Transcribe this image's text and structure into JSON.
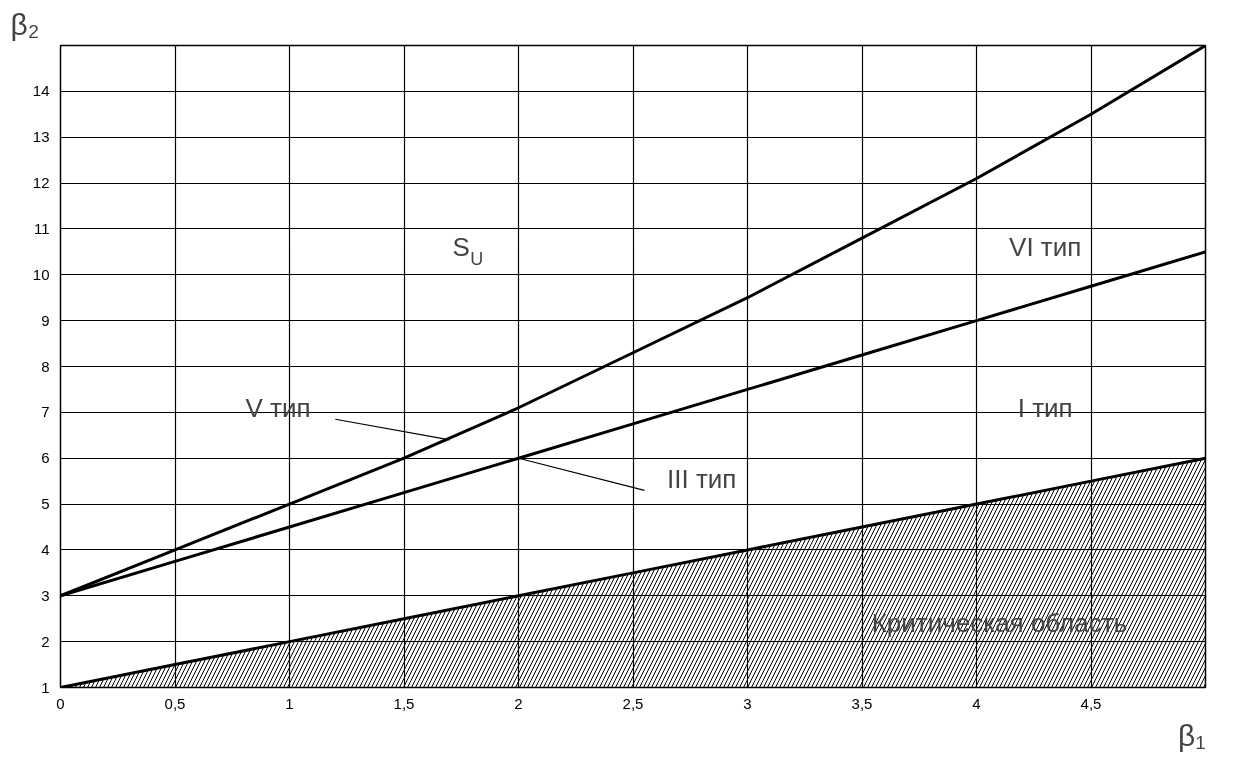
{
  "chart_data": {
    "type": "line",
    "xlabel": "β₁",
    "ylabel": "β₂",
    "x": [
      0,
      0.5,
      1,
      1.5,
      2,
      2.5,
      3,
      3.5,
      4,
      4.5,
      5
    ],
    "series": [
      {
        "color": "#000000",
        "values": [
          3,
          4,
          5,
          6,
          7.1,
          8.3,
          9.5,
          10.8,
          12.1,
          13.5,
          15
        ]
      },
      {
        "color": "#000000",
        "values": [
          3,
          3.75,
          4.5,
          5.25,
          6,
          6.75,
          7.5,
          8.25,
          9,
          9.75,
          10.5
        ]
      },
      {
        "type": "area",
        "color": "#000000",
        "values": [
          1,
          1.5,
          2,
          2.5,
          3,
          3.5,
          4,
          4.5,
          5,
          5.5,
          6
        ]
      }
    ],
    "xlim": [
      0,
      5
    ],
    "ylim": [
      1,
      15
    ],
    "xticks": [
      0,
      {
        "value": 0.5,
        "label": "0,5"
      },
      1,
      {
        "value": 1.5,
        "label": "1,5"
      },
      2,
      {
        "value": 2.5,
        "label": "2,5"
      },
      3,
      {
        "value": 3.5,
        "label": "3,5"
      },
      4,
      {
        "value": 4.5,
        "label": "4,5"
      },
      {
        "value": 5,
        "label": null
      }
    ],
    "yticks": [
      1,
      2,
      3,
      4,
      5,
      6,
      7,
      8,
      9,
      10,
      11,
      12,
      13,
      14,
      {
        "value": 15,
        "label": null
      }
    ],
    "grid": true,
    "legend": false,
    "marker": "none",
    "line_style": "solid",
    "annotations": [
      "S$_{U}$",
      "VI тип",
      "I тип",
      {
        "text": "V тип",
        "x": 1.7,
        "y": 6.4
      },
      {
        "text": "III тип",
        "x": 2,
        "y": 6
      },
      "Критическая область"
    ]
  }
}
